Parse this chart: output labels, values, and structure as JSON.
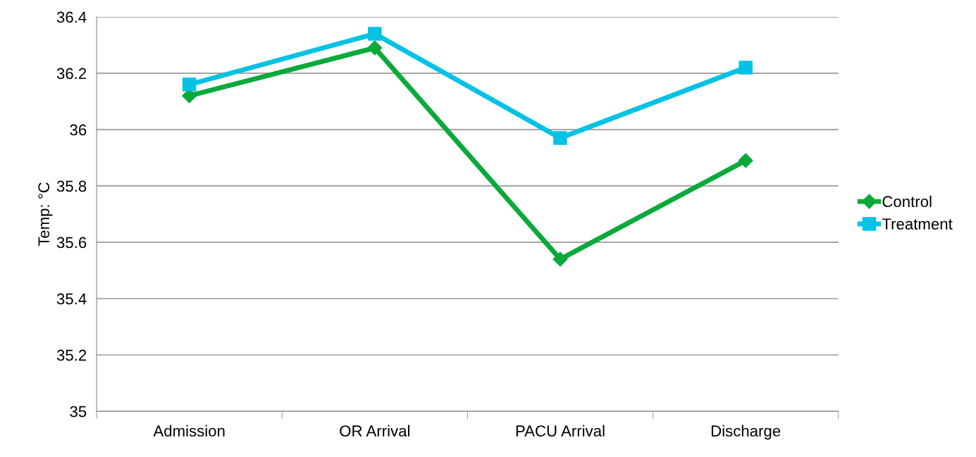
{
  "chart_data": {
    "type": "line",
    "ylabel": "Temp: °C",
    "categories": [
      "Admission",
      "OR Arrival",
      "PACU Arrival",
      "Discharge"
    ],
    "series": [
      {
        "name": "Control",
        "color": "#0aaa3a",
        "marker": "diamond",
        "values": [
          36.12,
          36.29,
          35.54,
          35.89
        ]
      },
      {
        "name": "Treatment",
        "color": "#00c2e4",
        "marker": "square",
        "values": [
          36.16,
          36.34,
          35.97,
          36.22
        ]
      }
    ],
    "ylim": [
      35,
      36.4
    ],
    "yticks": [
      35,
      35.2,
      35.4,
      35.6,
      35.8,
      36,
      36.2,
      36.4
    ],
    "grid": "y",
    "legend": "right",
    "line_style": "solid"
  }
}
